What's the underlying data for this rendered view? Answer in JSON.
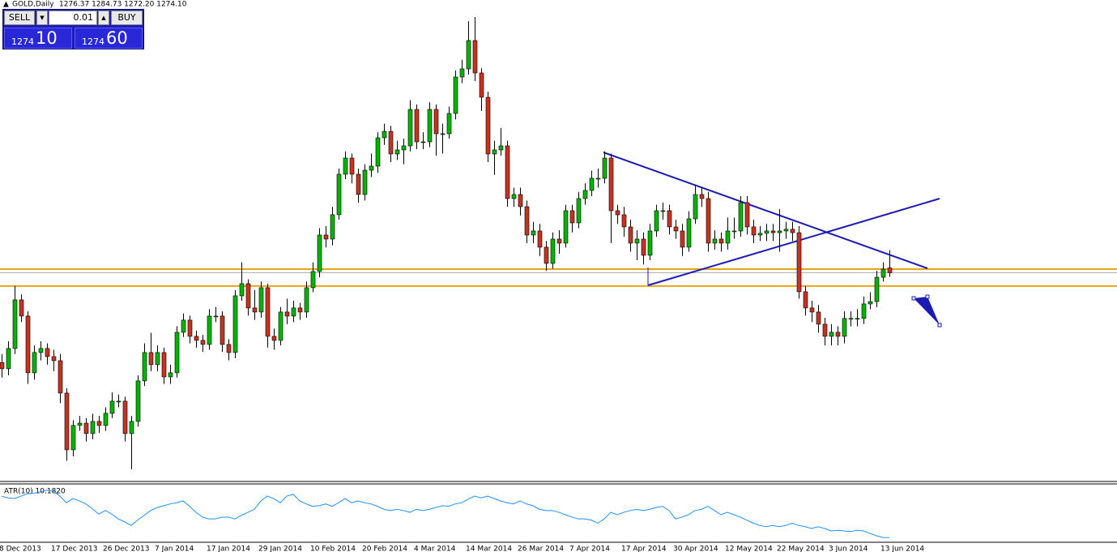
{
  "trade_panel": {
    "sell": "SELL",
    "lot": "0.01",
    "buy": "BUY",
    "sell_big": "1274",
    "sell_small": "10",
    "buy_big": "1274",
    "buy_small": "60"
  },
  "chart_data": [
    {
      "type": "candlestick",
      "title": "GOLD,Daily",
      "quote": "1276.37 1284.73 1272.20 1274.10",
      "up_color": "#00b400",
      "down_color": "#c8321e",
      "ylim": [
        1177,
        1402
      ],
      "levels": [
        1275.8,
        1267.9
      ],
      "level_color": "#e8a317",
      "categories": [
        "8 Dec 2013",
        null,
        null,
        null,
        null,
        null,
        null,
        null,
        "17 Dec 2013",
        null,
        null,
        null,
        null,
        null,
        null,
        null,
        "26 Dec 2013",
        null,
        null,
        null,
        null,
        null,
        null,
        null,
        "7 Jan 2014",
        null,
        null,
        null,
        null,
        null,
        null,
        null,
        "17 Jan 2014",
        null,
        null,
        null,
        null,
        null,
        null,
        null,
        "29 Jan 2014",
        null,
        null,
        null,
        null,
        null,
        null,
        null,
        "10 Feb 2014",
        null,
        null,
        null,
        null,
        null,
        null,
        null,
        "20 Feb 2014",
        null,
        null,
        null,
        null,
        null,
        null,
        null,
        "4 Mar 2014",
        null,
        null,
        null,
        null,
        null,
        null,
        null,
        "14 Mar 2014",
        null,
        null,
        null,
        null,
        null,
        null,
        null,
        "26 Mar 2014",
        null,
        null,
        null,
        null,
        null,
        null,
        null,
        "7 Apr 2014",
        null,
        null,
        null,
        null,
        null,
        null,
        null,
        "17 Apr 2014",
        null,
        null,
        null,
        null,
        null,
        null,
        null,
        "30 Apr 2014",
        null,
        null,
        null,
        null,
        null,
        null,
        null,
        "12 May 2014",
        null,
        null,
        null,
        null,
        null,
        null,
        null,
        "22 May 2014",
        null,
        null,
        null,
        null,
        null,
        null,
        null,
        "3 Jun 2014",
        null,
        null,
        null,
        null,
        null,
        null,
        null,
        "13 Jun 2014",
        null
      ],
      "open": [
        1232.0,
        1229.1,
        1238.6,
        1261.4,
        1253.8,
        1227.2,
        1236.7,
        1238.6,
        1234.8,
        1232.9,
        1217.7,
        1191.1,
        1202.5,
        1203.6,
        1198.7,
        1204.4,
        1202.5,
        1208.2,
        1213.9,
        1213.9,
        1198.7,
        1204.4,
        1223.4,
        1236.7,
        1231.0,
        1236.7,
        1225.3,
        1227.2,
        1246.2,
        1251.9,
        1244.3,
        1242.4,
        1240.5,
        1253.8,
        1253.8,
        1240.5,
        1236.7,
        1263.3,
        1269.0,
        1257.6,
        1255.7,
        1267.1,
        1244.3,
        1242.4,
        1255.7,
        1253.8,
        1257.6,
        1255.7,
        1267.1,
        1274.7,
        1291.8,
        1289.9,
        1301.3,
        1320.3,
        1327.9,
        1320.3,
        1310.8,
        1322.2,
        1324.1,
        1337.4,
        1340.4,
        1329.8,
        1331.7,
        1333.6,
        1350.7,
        1335.5,
        1335.5,
        1350.7,
        1339.3,
        1339.3,
        1348.8,
        1365.9,
        1369.7,
        1383.0,
        1367.8,
        1356.4,
        1329.8,
        1331.7,
        1333.6,
        1308.9,
        1310.8,
        1305.1,
        1291.8,
        1293.7,
        1286.1,
        1278.5,
        1289.9,
        1288.0,
        1303.2,
        1297.5,
        1308.9,
        1312.7,
        1318.4,
        1318.4,
        1327.9,
        1303.2,
        1301.3,
        1295.6,
        1288.0,
        1289.9,
        1282.3,
        1293.7,
        1303.2,
        1303.2,
        1295.6,
        1293.7,
        1286.1,
        1299.4,
        1310.8,
        1308.9,
        1288.0,
        1289.9,
        1288.0,
        1293.7,
        1293.7,
        1307.0,
        1295.6,
        1291.8,
        1292.6,
        1293.7,
        1292.9,
        1293.7,
        1294.5,
        1292.9,
        1265.2,
        1257.6,
        1255.7,
        1250.0,
        1244.3,
        1246.2,
        1244.3,
        1252.7,
        1252.7,
        1252.7,
        1259.5,
        1260.6,
        1272.0,
        1276.37
      ],
      "high": [
        1236,
        1242,
        1268,
        1264,
        1256,
        1240,
        1242,
        1241,
        1238,
        1236,
        1220,
        1205,
        1207,
        1206,
        1208,
        1207,
        1211,
        1218,
        1217,
        1216,
        1207,
        1226,
        1241,
        1246,
        1240,
        1239,
        1231,
        1249,
        1255,
        1254,
        1247,
        1245,
        1257,
        1258,
        1256,
        1243,
        1266,
        1279,
        1271,
        1266,
        1270,
        1269,
        1248,
        1258,
        1262,
        1261,
        1260,
        1270,
        1279,
        1295,
        1296,
        1305,
        1323,
        1331,
        1330,
        1323,
        1325,
        1330,
        1340,
        1344,
        1343,
        1336,
        1337,
        1355,
        1353,
        1340,
        1354,
        1353,
        1344,
        1352,
        1369,
        1374,
        1392,
        1394,
        1370,
        1359,
        1336,
        1342,
        1336,
        1314,
        1314,
        1308,
        1298,
        1297,
        1289,
        1293,
        1294,
        1306,
        1306,
        1312,
        1316,
        1322,
        1323,
        1331,
        1330,
        1306,
        1305,
        1299,
        1294,
        1293,
        1297,
        1306,
        1307,
        1306,
        1299,
        1297,
        1303,
        1315,
        1314,
        1312,
        1294,
        1293,
        1300,
        1300,
        1310,
        1310,
        1299,
        1296,
        1297,
        1297,
        1304,
        1298,
        1298,
        1296,
        1268,
        1261,
        1259,
        1253,
        1250,
        1249,
        1256,
        1256,
        1257,
        1263,
        1265,
        1275,
        1279,
        1284.73
      ],
      "low": [
        1225,
        1226,
        1236,
        1251,
        1222,
        1224,
        1233,
        1231,
        1228,
        1213,
        1186,
        1188,
        1200,
        1195,
        1196,
        1199,
        1200,
        1206,
        1211,
        1195,
        1182,
        1202,
        1221,
        1228,
        1228,
        1222,
        1222,
        1225,
        1244,
        1241,
        1239,
        1237,
        1238,
        1251,
        1237,
        1233,
        1234,
        1261,
        1254,
        1252,
        1253,
        1239,
        1238,
        1240,
        1250,
        1251,
        1252,
        1253,
        1265,
        1272,
        1286,
        1287,
        1299,
        1318,
        1316,
        1307,
        1308,
        1319,
        1321,
        1334,
        1326,
        1327,
        1325,
        1331,
        1332,
        1332,
        1333,
        1329,
        1330,
        1337,
        1346,
        1363,
        1367,
        1364,
        1350,
        1326,
        1320,
        1329,
        1305,
        1305,
        1301,
        1288,
        1288,
        1282,
        1275,
        1276,
        1283,
        1286,
        1293,
        1295,
        1306,
        1310,
        1314,
        1316,
        1288,
        1297,
        1291,
        1284,
        1280,
        1278,
        1280,
        1291,
        1299,
        1292,
        1290,
        1282,
        1284,
        1297,
        1305,
        1284,
        1285,
        1284,
        1285,
        1290,
        1291,
        1292,
        1288,
        1289,
        1289,
        1289,
        1284,
        1290,
        1289,
        1262,
        1254,
        1251,
        1246,
        1240,
        1240,
        1240,
        1241,
        1249,
        1249,
        1250,
        1257,
        1258,
        1270,
        1272.2
      ],
      "close": [
        1229.1,
        1238.6,
        1261.4,
        1253.8,
        1227.2,
        1236.7,
        1238.6,
        1234.8,
        1232.9,
        1217.7,
        1191.1,
        1202.5,
        1203.6,
        1198.7,
        1204.4,
        1202.5,
        1208.2,
        1213.9,
        1213.9,
        1198.7,
        1204.4,
        1223.4,
        1236.7,
        1231.0,
        1236.7,
        1225.3,
        1227.2,
        1246.2,
        1251.9,
        1244.3,
        1242.4,
        1240.5,
        1253.8,
        1253.8,
        1240.5,
        1236.7,
        1263.3,
        1269.0,
        1257.6,
        1255.7,
        1267.1,
        1244.3,
        1242.4,
        1255.7,
        1253.8,
        1257.6,
        1255.7,
        1267.1,
        1274.7,
        1291.8,
        1289.9,
        1301.3,
        1320.3,
        1327.9,
        1320.3,
        1310.8,
        1322.2,
        1324.1,
        1337.4,
        1340.4,
        1329.8,
        1331.7,
        1333.6,
        1350.7,
        1335.5,
        1335.5,
        1350.7,
        1339.3,
        1339.3,
        1348.8,
        1365.9,
        1369.7,
        1383.0,
        1367.8,
        1356.4,
        1329.8,
        1331.7,
        1333.6,
        1308.9,
        1310.8,
        1305.1,
        1291.8,
        1293.7,
        1286.1,
        1278.5,
        1289.9,
        1288.0,
        1303.2,
        1297.5,
        1308.9,
        1312.7,
        1318.4,
        1318.4,
        1327.9,
        1303.2,
        1301.3,
        1295.6,
        1288.0,
        1289.9,
        1282.3,
        1293.7,
        1303.2,
        1303.2,
        1295.6,
        1293.7,
        1286.1,
        1299.4,
        1310.8,
        1308.9,
        1288.0,
        1289.9,
        1288.0,
        1293.7,
        1293.7,
        1307.0,
        1295.6,
        1291.8,
        1292.6,
        1293.7,
        1292.9,
        1293.7,
        1294.5,
        1292.9,
        1265.2,
        1257.6,
        1255.7,
        1250.0,
        1244.3,
        1246.2,
        1244.3,
        1252.7,
        1252.7,
        1252.7,
        1259.5,
        1260.6,
        1272.0,
        1275.8,
        1274.1
      ]
    },
    {
      "type": "line",
      "title": "ATR(10) 10.1820",
      "color": "#1e90ff",
      "ylim": [
        9,
        19
      ],
      "values": [
        17.1,
        16.8,
        16.7,
        17.1,
        17.5,
        17.6,
        17.8,
        18.1,
        17.9,
        17.1,
        16.0,
        16.7,
        16.3,
        15.8,
        15.0,
        14.1,
        14.7,
        14.1,
        13.3,
        12.8,
        12.2,
        13.1,
        13.9,
        14.7,
        15.2,
        15.5,
        15.8,
        16.0,
        16.3,
        15.4,
        14.4,
        13.6,
        13.3,
        13.3,
        13.6,
        13.6,
        13.3,
        13.9,
        14.4,
        14.9,
        16.3,
        17.1,
        16.7,
        16.0,
        17.1,
        17.4,
        16.3,
        15.8,
        15.4,
        15.5,
        15.8,
        15.4,
        16.0,
        16.7,
        16.0,
        16.3,
        16.0,
        15.8,
        15.4,
        14.9,
        14.7,
        14.9,
        14.7,
        14.4,
        14.9,
        14.7,
        14.9,
        15.2,
        15.5,
        15.4,
        15.8,
        16.0,
        16.6,
        17.1,
        16.8,
        17.1,
        16.7,
        16.3,
        16.0,
        15.8,
        16.3,
        15.8,
        15.5,
        14.9,
        14.7,
        14.7,
        14.4,
        14.0,
        13.6,
        13.3,
        13.3,
        13.1,
        12.6,
        13.3,
        14.4,
        14.0,
        14.4,
        14.7,
        14.9,
        14.7,
        14.9,
        15.2,
        15.4,
        14.7,
        13.3,
        13.6,
        14.0,
        14.7,
        14.9,
        15.4,
        14.7,
        14.0,
        14.4,
        14.0,
        13.6,
        13.1,
        12.6,
        12.2,
        12.0,
        12.2,
        12.0,
        12.2,
        12.6,
        12.2,
        12.0,
        11.7,
        12.0,
        11.7,
        11.3,
        11.4,
        11.3,
        11.2,
        11.4,
        11.3,
        10.9,
        10.5,
        10.2,
        10.182
      ]
    }
  ]
}
